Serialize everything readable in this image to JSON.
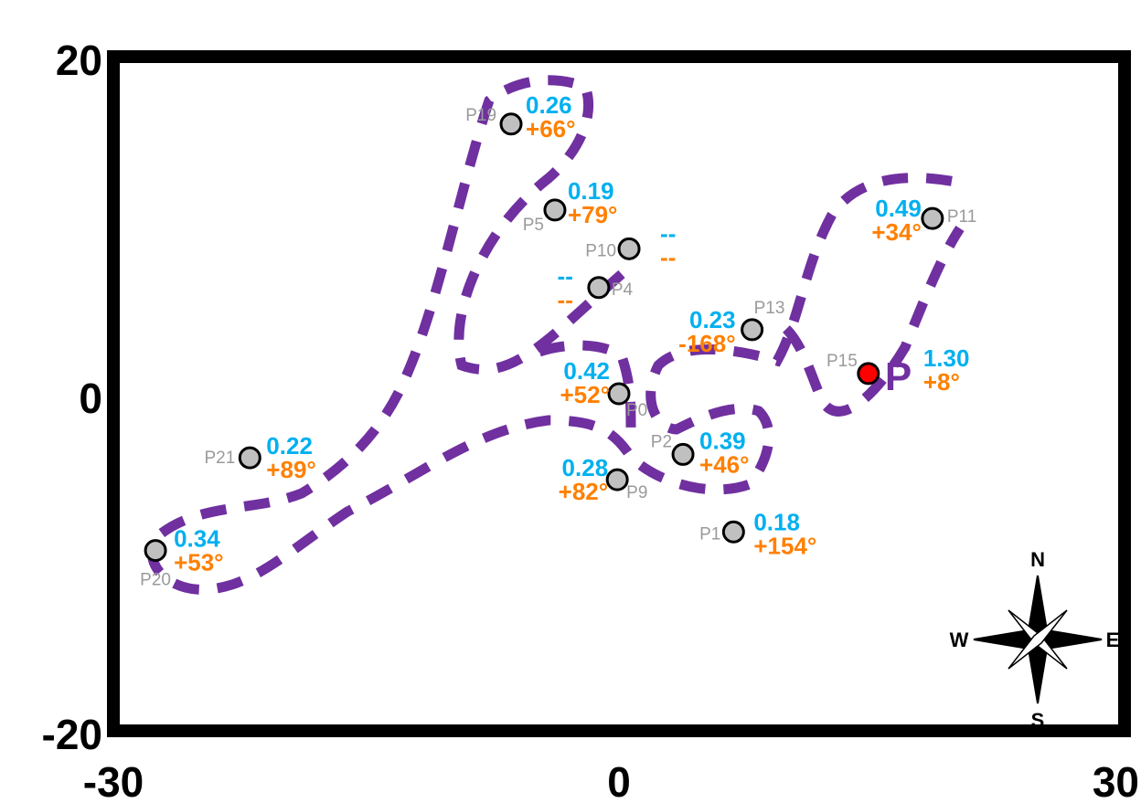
{
  "colors": {
    "frame": "#000000",
    "contour": "#7030a0",
    "magnitude": "#00b0f0",
    "direction": "#ff8000",
    "point_fill": "#c0c0c0",
    "highlight_fill": "#ff0000",
    "name": "#9a9a9a"
  },
  "axes": {
    "x_ticks": [
      "-30",
      "0",
      "30"
    ],
    "y_ticks": [
      "20",
      "0",
      "-20"
    ]
  },
  "chart_data": {
    "type": "scatter",
    "xlim": [
      -30,
      30
    ],
    "ylim": [
      -20,
      20
    ],
    "points": [
      {
        "name": "P0",
        "x": 0.0,
        "y": 0.0,
        "mag": "0.42",
        "dir": "+52°"
      },
      {
        "name": "P1",
        "x": 6.8,
        "y": -8.2,
        "mag": "0.18",
        "dir": "+154°"
      },
      {
        "name": "P2",
        "x": 3.8,
        "y": -3.6,
        "mag": "0.39",
        "dir": "+46°"
      },
      {
        "name": "P4",
        "x": -1.2,
        "y": 6.3,
        "mag": "--",
        "dir": "--"
      },
      {
        "name": "P5",
        "x": -3.8,
        "y": 10.9,
        "mag": "0.19",
        "dir": "+79°"
      },
      {
        "name": "P9",
        "x": -0.1,
        "y": -5.1,
        "mag": "0.28",
        "dir": "+82°"
      },
      {
        "name": "P10",
        "x": 0.6,
        "y": 8.6,
        "mag": "--",
        "dir": "--"
      },
      {
        "name": "P11",
        "x": 18.6,
        "y": 10.4,
        "mag": "0.49",
        "dir": "+34°"
      },
      {
        "name": "P13",
        "x": 7.9,
        "y": 3.8,
        "mag": "0.23",
        "dir": "-168°"
      },
      {
        "name": "P15",
        "x": 14.8,
        "y": 1.2,
        "mag": "1.30",
        "dir": "+8°",
        "highlight": true
      },
      {
        "name": "P19",
        "x": -6.4,
        "y": 16.0,
        "mag": "0.26",
        "dir": "+66°"
      },
      {
        "name": "P20",
        "x": -27.5,
        "y": -9.3,
        "mag": "0.34",
        "dir": "+53°"
      },
      {
        "name": "P21",
        "x": -21.9,
        "y": -3.8,
        "mag": "0.22",
        "dir": "+89°"
      }
    ]
  },
  "highlight_label": "P",
  "compass": {
    "n": "N",
    "s": "S",
    "e": "E",
    "w": "W"
  }
}
